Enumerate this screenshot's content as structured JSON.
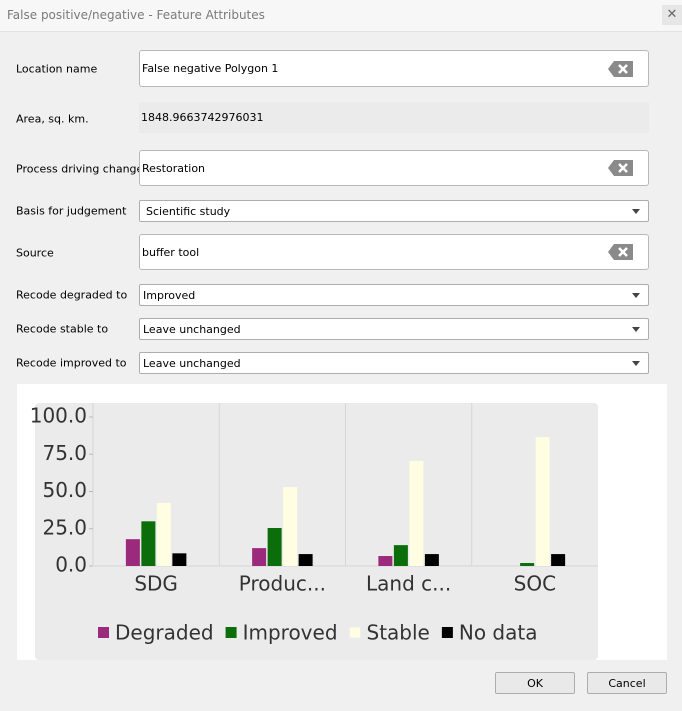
{
  "window": {
    "title": "False positive/negative - Feature Attributes"
  },
  "fields": {
    "location_name": {
      "label": "Location name",
      "value": "False negative Polygon 1"
    },
    "area": {
      "label": "Area, sq. km.",
      "value": "1848.9663742976031"
    },
    "process": {
      "label": "Process driving change",
      "value": "Restoration"
    },
    "basis": {
      "label": "Basis for judgement",
      "value": "Scientific study"
    },
    "source": {
      "label": "Source",
      "value": "buffer tool"
    },
    "recode_degraded": {
      "label": "Recode degraded to",
      "value": "Improved"
    },
    "recode_stable": {
      "label": "Recode stable to",
      "value": "Leave unchanged"
    },
    "recode_improved": {
      "label": "Recode improved to",
      "value": "Leave unchanged"
    }
  },
  "buttons": {
    "ok": "OK",
    "cancel": "Cancel"
  },
  "chart_data": {
    "type": "bar",
    "categories": [
      "SDG",
      "Produc...",
      "Land c...",
      "SOC"
    ],
    "series": [
      {
        "name": "Degraded",
        "color": "#9c2a7c",
        "values": [
          18,
          12,
          6.7,
          0
        ]
      },
      {
        "name": "Improved",
        "color": "#0b6e0b",
        "values": [
          30,
          25.5,
          14,
          2
        ]
      },
      {
        "name": "Stable",
        "color": "#fffde2",
        "values": [
          42.3,
          53,
          70.5,
          86.5
        ]
      },
      {
        "name": "No data",
        "color": "#000000",
        "values": [
          8.5,
          8,
          8,
          8
        ]
      }
    ],
    "ylim": [
      0,
      100
    ],
    "yticks": [
      {
        "value": 0,
        "label": "0.0"
      },
      {
        "value": 25,
        "label": "25.0"
      },
      {
        "value": 50,
        "label": "50.0"
      },
      {
        "value": 75,
        "label": "75.0"
      },
      {
        "value": 100,
        "label": "100.0"
      }
    ],
    "legend": "bottom"
  }
}
